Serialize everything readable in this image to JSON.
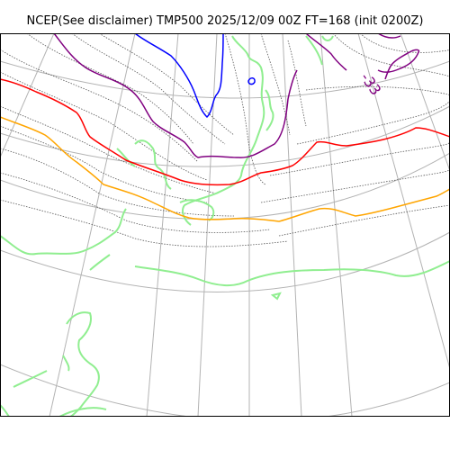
{
  "title": "NCEP(See disclaimer) TMP500 2025/12/09 00Z FT=168 (init 0200Z)",
  "contour_label": "-33",
  "colors": {
    "background": "#ffffff",
    "frame": "#000000",
    "graticule": "#b3b3b3",
    "coastline": "#90ee90",
    "isotherm_dotted": "#555555",
    "isotherm_purple": "#800080",
    "isotherm_red": "#ff0000",
    "isotherm_orange": "#ffa500",
    "isotherm_blue": "#0000ff"
  }
}
